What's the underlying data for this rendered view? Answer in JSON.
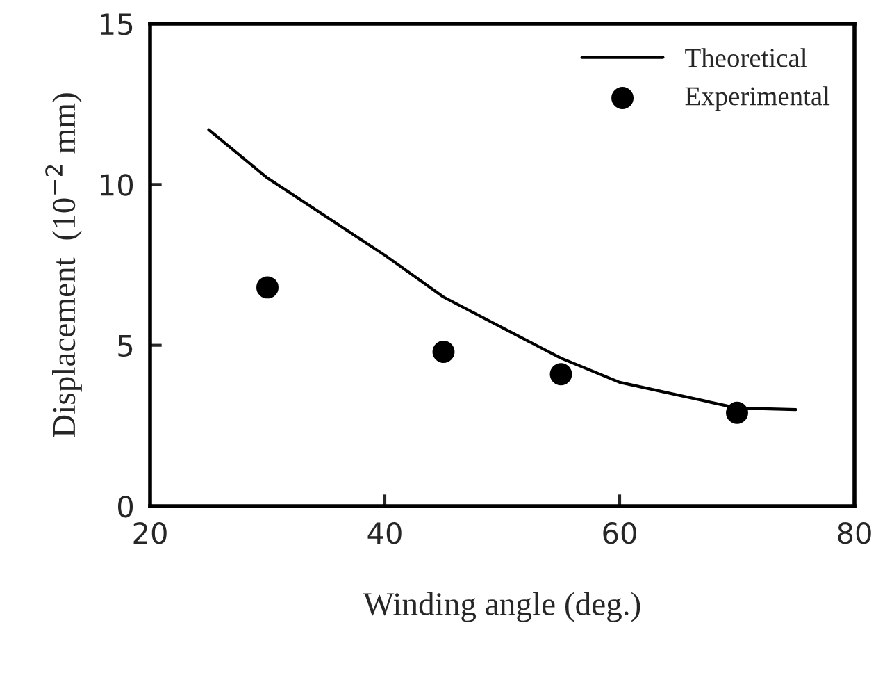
{
  "chart_data": {
    "type": "line",
    "xlabel": "Winding angle (deg.)",
    "ylabel": "Displacement  (10$^{−2}$ mm)",
    "xlim": [
      20,
      80
    ],
    "xticks": [
      20,
      40,
      60,
      80
    ],
    "ylim": [
      0,
      15
    ],
    "yticks": [
      0,
      5,
      10,
      15
    ],
    "grid": false,
    "legend": "top right",
    "series": [
      {
        "name": "Theoretical",
        "color": "#000000",
        "marker": "none",
        "line_style": "solid",
        "x": [
          25,
          30,
          40,
          45,
          55,
          60,
          70,
          75
        ],
        "values": [
          11.7,
          10.2,
          7.8,
          6.5,
          4.6,
          3.85,
          3.05,
          3.0
        ]
      },
      {
        "name": "Experimental",
        "type": "scatter",
        "color": "#000000",
        "marker": "circle",
        "x": [
          30,
          45,
          55,
          70
        ],
        "values": [
          6.8,
          4.8,
          4.1,
          2.9
        ]
      }
    ]
  }
}
